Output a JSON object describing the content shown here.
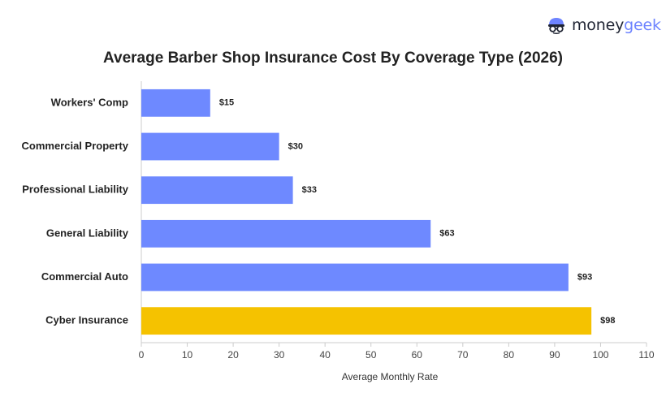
{
  "brand": {
    "name_part1": "money",
    "name_part2": "geek",
    "icon": "moneygeek-mascot-icon"
  },
  "colors": {
    "bar_default": "#6e89ff",
    "bar_highlight": "#f5c200"
  },
  "chart_data": {
    "type": "bar",
    "orientation": "horizontal",
    "title": "Average Barber Shop Insurance Cost By Coverage Type (2026)",
    "xlabel": "Average Monthly Rate",
    "ylabel": "",
    "categories": [
      "Workers' Comp",
      "Commercial Property",
      "Professional Liability",
      "General Liability",
      "Commercial Auto",
      "Cyber Insurance"
    ],
    "values": [
      15,
      30,
      33,
      63,
      93,
      98
    ],
    "value_labels": [
      "$15",
      "$30",
      "$33",
      "$63",
      "$93",
      "$98"
    ],
    "highlight_index": 5,
    "xlim": [
      0,
      110
    ],
    "xticks": [
      0,
      10,
      20,
      30,
      40,
      50,
      60,
      70,
      80,
      90,
      100,
      110
    ],
    "grid": false,
    "legend": "none"
  }
}
